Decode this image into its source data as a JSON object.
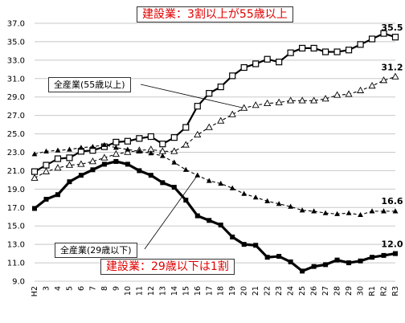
{
  "chart_data": {
    "type": "line",
    "categories": [
      "H2",
      "3",
      "4",
      "5",
      "6",
      "7",
      "8",
      "9",
      "10",
      "11",
      "12",
      "13",
      "14",
      "15",
      "16",
      "17",
      "18",
      "19",
      "20",
      "21",
      "22",
      "23",
      "24",
      "25",
      "26",
      "27",
      "28",
      "29",
      "30",
      "R1",
      "R2",
      "R3"
    ],
    "ylim": [
      9.0,
      37.0
    ],
    "yticks": [
      9.0,
      11.0,
      13.0,
      15.0,
      17.0,
      19.0,
      21.0,
      23.0,
      25.0,
      27.0,
      29.0,
      31.0,
      33.0,
      35.0,
      37.0
    ],
    "grid": true,
    "series": [
      {
        "key": "construction_55plus",
        "marker": "open-square",
        "line": "solid",
        "values": [
          20.9,
          21.6,
          22.3,
          22.4,
          23.1,
          23.2,
          23.6,
          24.1,
          24.2,
          24.5,
          24.7,
          23.9,
          24.6,
          25.7,
          28.0,
          29.4,
          30.1,
          31.3,
          32.2,
          32.6,
          33.1,
          32.8,
          33.8,
          34.3,
          34.3,
          33.9,
          33.9,
          34.1,
          34.7,
          35.3,
          35.9,
          35.5
        ]
      },
      {
        "key": "all_industry_55plus",
        "marker": "open-triangle",
        "line": "dashed",
        "values": [
          20.2,
          20.9,
          21.3,
          21.6,
          21.7,
          22.0,
          22.4,
          22.8,
          23.0,
          23.2,
          23.3,
          23.1,
          23.1,
          23.8,
          24.9,
          25.7,
          26.4,
          27.1,
          27.8,
          28.1,
          28.3,
          28.4,
          28.6,
          28.6,
          28.6,
          28.8,
          29.2,
          29.3,
          29.7,
          30.2,
          30.8,
          31.2
        ]
      },
      {
        "key": "all_industry_29under",
        "marker": "filled-triangle",
        "line": "dashed",
        "values": [
          22.8,
          23.1,
          23.2,
          23.3,
          23.5,
          23.6,
          23.8,
          23.5,
          23.3,
          23.1,
          22.9,
          22.6,
          21.9,
          21.1,
          20.5,
          19.9,
          19.6,
          19.1,
          18.5,
          18.1,
          17.7,
          17.4,
          17.1,
          16.7,
          16.6,
          16.4,
          16.3,
          16.4,
          16.2,
          16.6,
          16.6,
          16.6
        ]
      },
      {
        "key": "construction_29under",
        "marker": "filled-square",
        "line": "solid",
        "values": [
          16.9,
          17.9,
          18.4,
          19.8,
          20.5,
          21.1,
          21.7,
          22.0,
          21.7,
          21.0,
          20.5,
          19.7,
          19.2,
          17.8,
          16.1,
          15.6,
          15.1,
          13.8,
          13.0,
          12.9,
          11.6,
          11.7,
          11.1,
          10.1,
          10.6,
          10.8,
          11.3,
          11.0,
          11.2,
          11.6,
          11.8,
          12.0
        ]
      }
    ],
    "end_labels": [
      "35.5",
      "31.2",
      "16.6",
      "12.0"
    ],
    "annotations": {
      "construction_55plus": "建設業：3割以上が55歳以上",
      "all_industry_55plus": "全産業(55歳以上)",
      "all_industry_29under": "全産業(29歳以下)",
      "construction_29under": "建設業：29歳以下は1割"
    }
  }
}
